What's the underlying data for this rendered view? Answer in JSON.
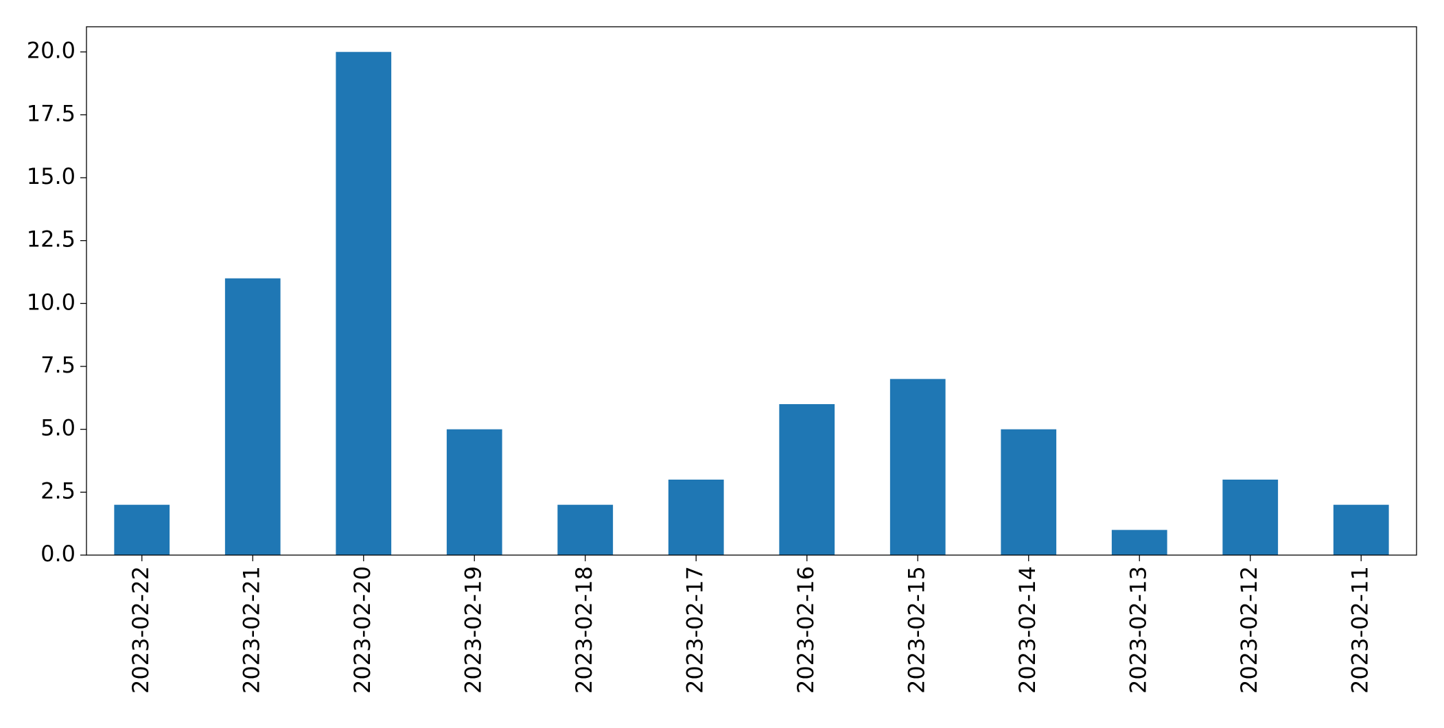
{
  "chart_data": {
    "type": "bar",
    "categories": [
      "2023-02-22",
      "2023-02-21",
      "2023-02-20",
      "2023-02-19",
      "2023-02-18",
      "2023-02-17",
      "2023-02-16",
      "2023-02-15",
      "2023-02-14",
      "2023-02-13",
      "2023-02-12",
      "2023-02-11"
    ],
    "values": [
      2,
      11,
      20,
      5,
      2,
      3,
      6,
      7,
      5,
      1,
      3,
      2
    ],
    "color": "#1f77b4",
    "ylim": [
      0,
      21
    ],
    "yticks": [
      {
        "value": 0,
        "label": "0.0"
      },
      2.5,
      {
        "value": 5,
        "label": "5.0"
      },
      7.5,
      {
        "value": 10,
        "label": "10.0"
      },
      12.5,
      {
        "value": 15,
        "label": "15.0"
      },
      17.5,
      {
        "value": 20,
        "label": "20.0"
      }
    ],
    "grid": false
  }
}
